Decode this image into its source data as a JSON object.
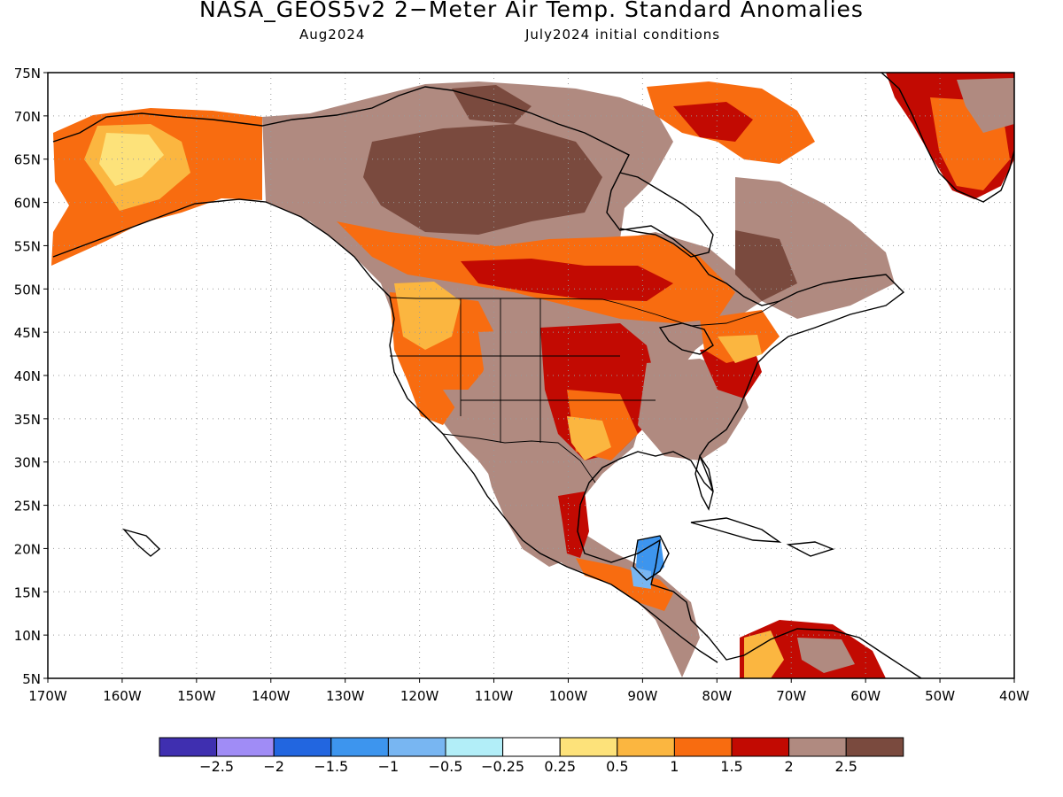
{
  "title": "NASA_GEOS5v2 2−Meter Air Temp. Standard Anomalies",
  "subtitle_left": "Aug2024",
  "subtitle_right": "July2024 initial conditions",
  "map": {
    "lon_range": [
      -170,
      -40
    ],
    "lat_range": [
      5,
      75
    ],
    "grid": "dotted",
    "x_ticks": [
      "170W",
      "160W",
      "150W",
      "140W",
      "130W",
      "120W",
      "110W",
      "100W",
      "90W",
      "80W",
      "70W",
      "60W",
      "50W",
      "40W"
    ],
    "y_ticks": [
      "75N",
      "70N",
      "65N",
      "60N",
      "55N",
      "50N",
      "45N",
      "40N",
      "35N",
      "30N",
      "25N",
      "20N",
      "15N",
      "10N",
      "5N"
    ]
  },
  "legend": {
    "colors": [
      "#3f2fb0",
      "#a08cf6",
      "#2266e0",
      "#3d95ee",
      "#78b6f2",
      "#b2eef8",
      "#ffffff",
      "#fde27a",
      "#fbb640",
      "#f86c10",
      "#c20a02",
      "#b08a80",
      "#7a4a3e"
    ],
    "labels": [
      "−2.5",
      "−2",
      "−1.5",
      "−1",
      "−0.5",
      "−0.25",
      "0.25",
      "0.5",
      "1",
      "1.5",
      "2",
      "2.5"
    ]
  }
}
